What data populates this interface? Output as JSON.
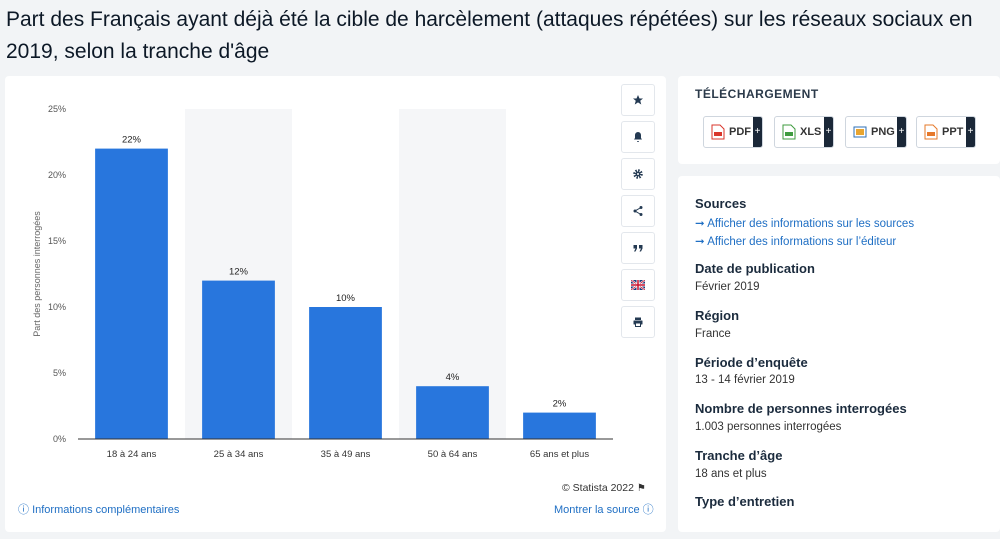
{
  "page_title": "Part des Français ayant déjà été la cible de harcèlement (attaques répétées) sur les réseaux sociaux en 2019, selon la tranche d'âge",
  "chart_data": {
    "type": "bar",
    "categories": [
      "18 à 24 ans",
      "25 à 34 ans",
      "35 à 49 ans",
      "50 à 64 ans",
      "65 ans et plus"
    ],
    "values": [
      22,
      12,
      10,
      4,
      2
    ],
    "value_labels": [
      "22%",
      "12%",
      "10%",
      "4%",
      "2%"
    ],
    "ylabel": "Part des personnes interrogées",
    "ylim": [
      0,
      25
    ],
    "yticks": [
      0,
      5,
      10,
      15,
      20,
      25
    ],
    "ytick_labels": [
      "0%",
      "5%",
      "10%",
      "15%",
      "20%",
      "25%"
    ],
    "bar_color": "#2876dd",
    "band_color": "#f5f6f8"
  },
  "chart_footer": {
    "credit": "© Statista 2022",
    "more_info": "Informations complémentaires",
    "show_source": "Montrer la source"
  },
  "side_actions": [
    "star-icon",
    "bell-icon",
    "gear-icon",
    "share-icon",
    "quote-icon",
    "flag-icon",
    "print-icon"
  ],
  "download": {
    "title": "TÉLÉCHARGEMENT",
    "buttons": [
      {
        "label": "PDF",
        "color": "#d9362b"
      },
      {
        "label": "XLS",
        "color": "#3f9b3f"
      },
      {
        "label": "PNG",
        "color": "#2c6fb5"
      },
      {
        "label": "PPT",
        "color": "#e6782a"
      }
    ],
    "plus": "+"
  },
  "info": {
    "sources_h": "Sources",
    "sources_link1": "Afficher des informations sur les sources",
    "sources_link2": "Afficher des informations sur l’éditeur",
    "pub_h": "Date de publication",
    "pub_v": "Février 2019",
    "region_h": "Région",
    "region_v": "France",
    "period_h": "Période d’enquête",
    "period_v": "13 - 14 février 2019",
    "count_h": "Nombre de personnes interrogées",
    "count_v": "1.003 personnes interrogées",
    "age_h": "Tranche d’âge",
    "age_v": "18 ans et plus",
    "type_h": "Type d’entretien"
  }
}
